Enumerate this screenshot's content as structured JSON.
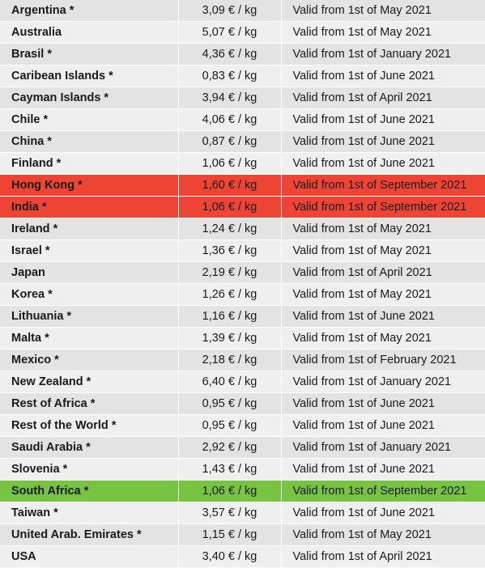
{
  "table": {
    "highlight_colors": {
      "red": "#ee4434",
      "green": "#76c442"
    },
    "rows": [
      {
        "country": "Argentina *",
        "price": "3,09 € / kg",
        "valid": "Valid from 1st of May 2021",
        "highlight": ""
      },
      {
        "country": "Australia",
        "price": "5,07 € / kg",
        "valid": "Valid from 1st of May 2021",
        "highlight": ""
      },
      {
        "country": "Brasil *",
        "price": "4,36 € / kg",
        "valid": "Valid from 1st of January 2021",
        "highlight": ""
      },
      {
        "country": "Caribean Islands *",
        "price": "0,83 € / kg",
        "valid": "Valid from 1st of June 2021",
        "highlight": ""
      },
      {
        "country": "Cayman Islands *",
        "price": "3,94 € / kg",
        "valid": "Valid from 1st of April 2021",
        "highlight": ""
      },
      {
        "country": "Chile *",
        "price": "4,06 € / kg",
        "valid": "Valid from 1st of June 2021",
        "highlight": ""
      },
      {
        "country": "China *",
        "price": "0,87 € / kg",
        "valid": "Valid from 1st of June 2021",
        "highlight": ""
      },
      {
        "country": "Finland *",
        "price": "1,06 € / kg",
        "valid": "Valid from 1st of June 2021",
        "highlight": ""
      },
      {
        "country": "Hong Kong *",
        "price": "1,60 € / kg",
        "valid": "Valid from 1st of September 2021",
        "highlight": "red"
      },
      {
        "country": "India *",
        "price": "1,06 € / kg",
        "valid": "Valid from 1st of September 2021",
        "highlight": "red"
      },
      {
        "country": "Ireland *",
        "price": "1,24 € / kg",
        "valid": "Valid from 1st of May 2021",
        "highlight": ""
      },
      {
        "country": "Israel *",
        "price": "1,36 € / kg",
        "valid": "Valid from 1st of May 2021",
        "highlight": ""
      },
      {
        "country": "Japan",
        "price": "2,19 € / kg",
        "valid": "Valid from 1st of April 2021",
        "highlight": ""
      },
      {
        "country": "Korea *",
        "price": "1,26 € / kg",
        "valid": "Valid from 1st of May 2021",
        "highlight": ""
      },
      {
        "country": "Lithuania *",
        "price": "1,16 € / kg",
        "valid": "Valid from 1st of June 2021",
        "highlight": ""
      },
      {
        "country": "Malta *",
        "price": "1,39 € / kg",
        "valid": "Valid from 1st of May 2021",
        "highlight": ""
      },
      {
        "country": "Mexico *",
        "price": "2,18 € / kg",
        "valid": "Valid from 1st of February 2021",
        "highlight": ""
      },
      {
        "country": "New Zealand *",
        "price": "6,40 € / kg",
        "valid": "Valid from 1st of January 2021",
        "highlight": ""
      },
      {
        "country": "Rest of Africa *",
        "price": "0,95 € / kg",
        "valid": "Valid from 1st of June 2021",
        "highlight": ""
      },
      {
        "country": "Rest of the World *",
        "price": "0,95 € / kg",
        "valid": "Valid from 1st of June 2021",
        "highlight": ""
      },
      {
        "country": "Saudi Arabia *",
        "price": "2,92 € / kg",
        "valid": "Valid from 1st of January 2021",
        "highlight": ""
      },
      {
        "country": "Slovenia *",
        "price": "1,43 € / kg",
        "valid": "Valid from 1st of June 2021",
        "highlight": ""
      },
      {
        "country": "South Africa *",
        "price": "1,06 € / kg",
        "valid": "Valid from 1st of September 2021",
        "highlight": "green"
      },
      {
        "country": "Taiwan *",
        "price": "3,57 € / kg",
        "valid": "Valid from 1st of June 2021",
        "highlight": ""
      },
      {
        "country": "United Arab. Emirates *",
        "price": "1,15 € / kg",
        "valid": "Valid from 1st of May 2021",
        "highlight": ""
      },
      {
        "country": "USA",
        "price": "3,40 € / kg",
        "valid": "Valid from 1st of April 2021",
        "highlight": ""
      }
    ]
  }
}
